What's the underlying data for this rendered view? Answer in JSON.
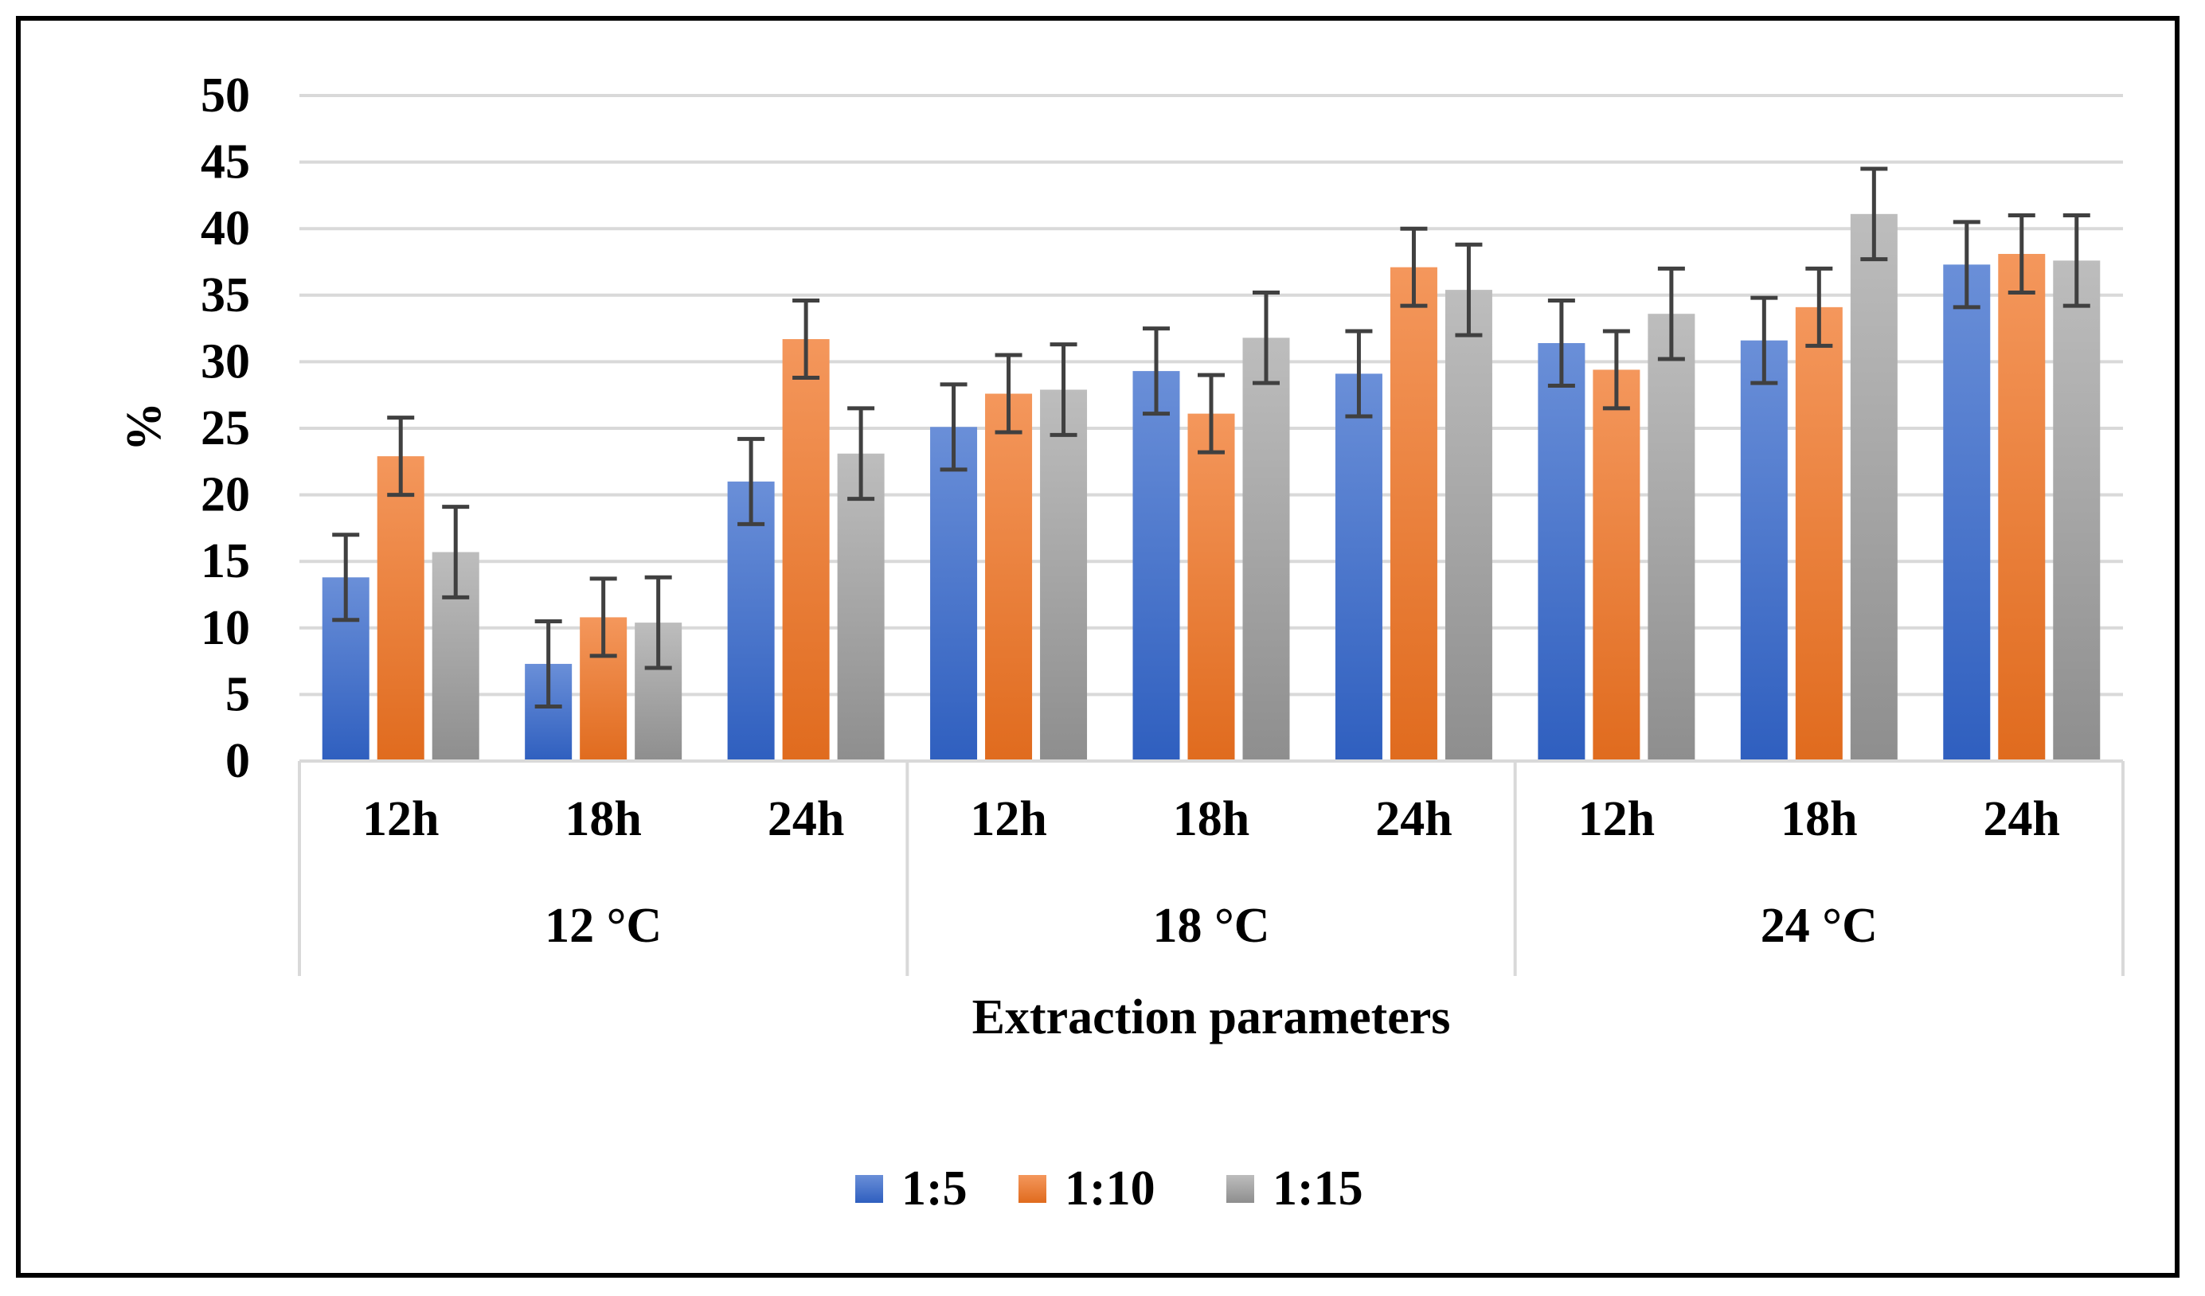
{
  "chart_data": {
    "type": "bar",
    "title": "",
    "xlabel": "Extraction parameters",
    "ylabel": "%",
    "ylim": [
      0,
      50
    ],
    "yticks": [
      0,
      5,
      10,
      15,
      20,
      25,
      30,
      35,
      40,
      45,
      50
    ],
    "grid": true,
    "legend_position": "bottom",
    "groups": [
      {
        "label": "12 °C",
        "categories": [
          "12h",
          "18h",
          "24h"
        ]
      },
      {
        "label": "18 °C",
        "categories": [
          "12h",
          "18h",
          "24h"
        ]
      },
      {
        "label": "24 °C",
        "categories": [
          "12h",
          "18h",
          "24h"
        ]
      }
    ],
    "categories": [
      "12h",
      "18h",
      "24h",
      "12h",
      "18h",
      "24h",
      "12h",
      "18h",
      "24h"
    ],
    "series": [
      {
        "name": "1:5",
        "color": "#4472C4",
        "values": [
          13.8,
          7.3,
          21.0,
          25.1,
          29.3,
          29.1,
          31.4,
          31.6,
          37.3
        ],
        "errors": [
          3.2,
          3.2,
          3.2,
          3.2,
          3.2,
          3.2,
          3.2,
          3.2,
          3.2
        ]
      },
      {
        "name": "1:10",
        "color": "#ED7D31",
        "values": [
          22.9,
          10.8,
          31.7,
          27.6,
          26.1,
          37.1,
          29.4,
          34.1,
          38.1
        ],
        "errors": [
          2.9,
          2.9,
          2.9,
          2.9,
          2.9,
          2.9,
          2.9,
          2.9,
          2.9
        ]
      },
      {
        "name": "1:15",
        "color": "#A5A5A5",
        "values": [
          15.7,
          10.4,
          23.1,
          27.9,
          31.8,
          35.4,
          33.6,
          41.1,
          37.6
        ],
        "errors": [
          3.4,
          3.4,
          3.4,
          3.4,
          3.4,
          3.4,
          3.4,
          3.4,
          3.4
        ]
      }
    ]
  }
}
